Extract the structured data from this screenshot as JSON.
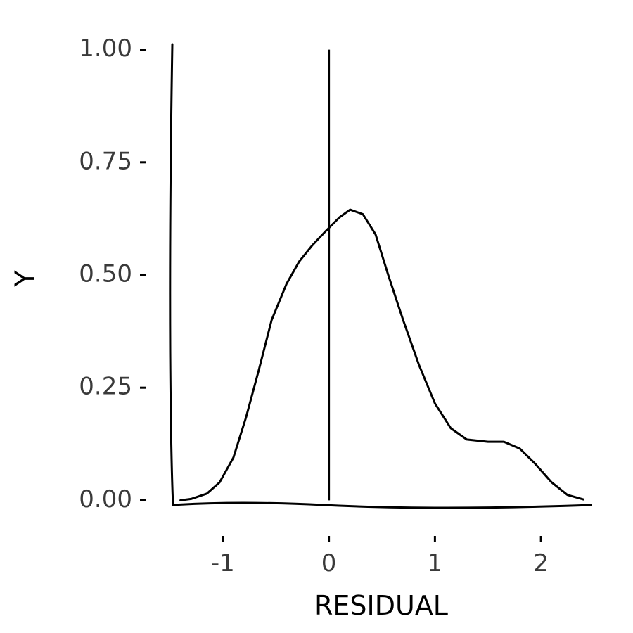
{
  "chart_data": {
    "type": "line",
    "title": "",
    "xlabel": "RESIDUAL",
    "ylabel": "Y",
    "xlim": [
      -1.47,
      2.47
    ],
    "ylim": [
      -0.04,
      1.04
    ],
    "xticks": [
      -1,
      0,
      1,
      2
    ],
    "xtick_labels": [
      "-1",
      "0",
      "1",
      "2"
    ],
    "yticks": [
      0,
      0.25,
      0.5,
      0.75,
      1.0
    ],
    "ytick_labels": [
      "0.00",
      "0.25",
      "0.50",
      "0.75",
      "1.00"
    ],
    "grid": false,
    "legend": "none",
    "reference_lines": [
      {
        "orientation": "vertical",
        "x": 0,
        "y_from": 0,
        "y_to": 1.0
      }
    ],
    "series": [
      {
        "x": [
          -1.4,
          -1.3,
          -1.15,
          -1.03,
          -0.9,
          -0.78,
          -0.66,
          -0.54,
          -0.4,
          -0.28,
          -0.16,
          -0.04,
          0.1,
          0.2,
          0.32,
          0.44,
          0.56,
          0.7,
          0.85,
          1.0,
          1.15,
          1.3,
          1.5,
          1.65,
          1.8,
          1.95,
          2.1,
          2.25,
          2.4
        ],
        "y": [
          0.0,
          0.003,
          0.015,
          0.04,
          0.095,
          0.185,
          0.29,
          0.4,
          0.48,
          0.53,
          0.565,
          0.595,
          0.628,
          0.645,
          0.635,
          0.59,
          0.5,
          0.4,
          0.3,
          0.215,
          0.16,
          0.135,
          0.13,
          0.13,
          0.115,
          0.08,
          0.04,
          0.012,
          0.002
        ]
      }
    ]
  }
}
